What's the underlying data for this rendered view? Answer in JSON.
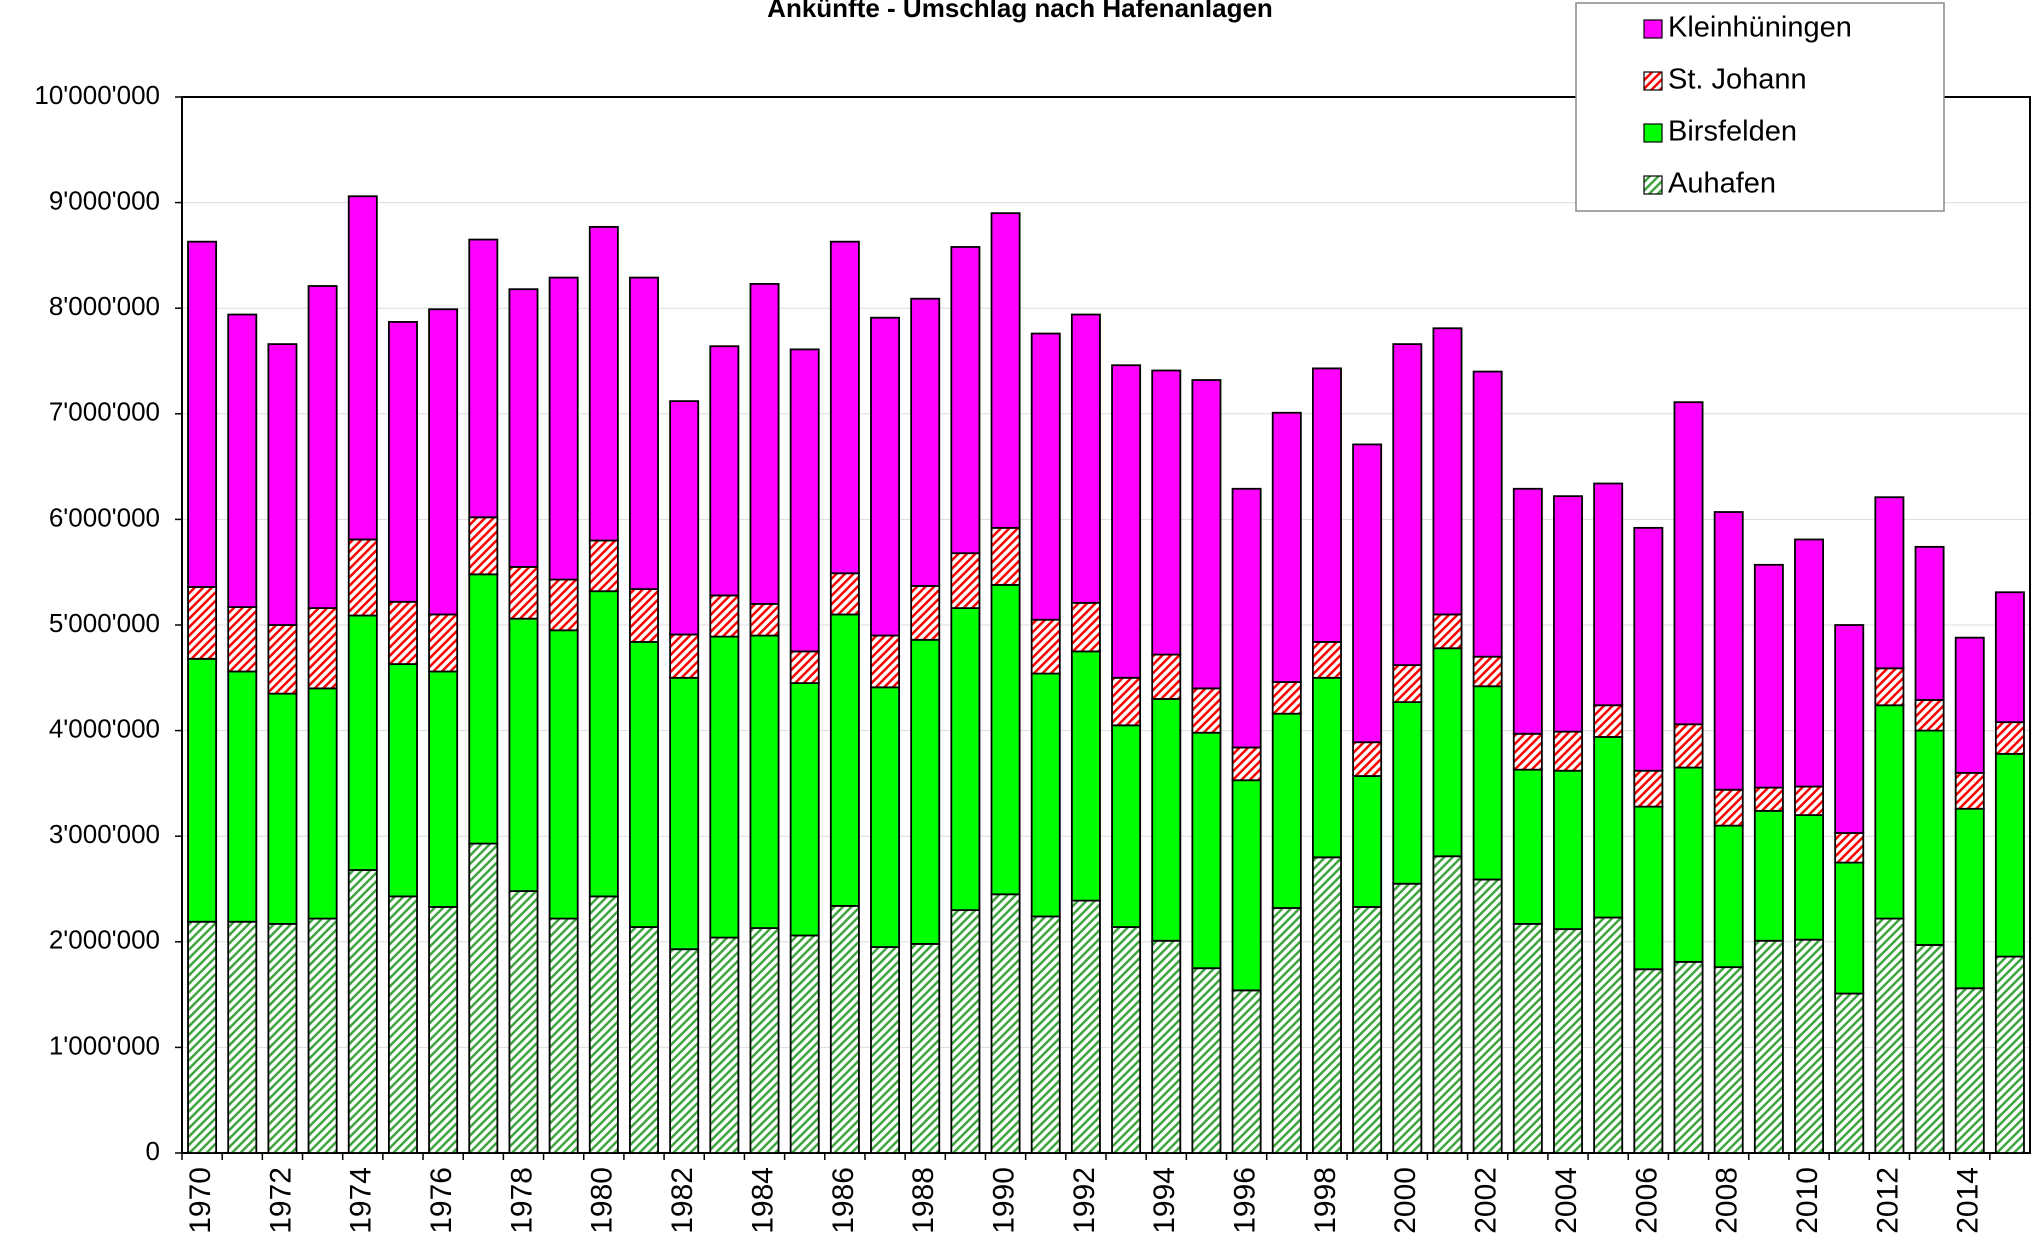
{
  "chart_data": {
    "type": "stacked_bar",
    "title": "Ankünfte - Umschlag nach Hafenanlagen",
    "categories": [
      "1970",
      null,
      "1972",
      null,
      "1974",
      null,
      "1976",
      null,
      "1978",
      null,
      "1980",
      null,
      "1982",
      null,
      "1984",
      null,
      "1986",
      null,
      "1988",
      null,
      "1990",
      null,
      "1992",
      null,
      "1994",
      null,
      "1996",
      null,
      "1998",
      null,
      "2000",
      null,
      "2002",
      null,
      "2004",
      null,
      "2006",
      null,
      "2008",
      null,
      "2010",
      null,
      "2012",
      null,
      "2014",
      null
    ],
    "series": [
      {
        "name": "Auhafen",
        "color": "#3fa53f",
        "hatched": true,
        "values": [
          2190000,
          2190000,
          2170000,
          2220000,
          2680000,
          2430000,
          2330000,
          2930000,
          2480000,
          2220000,
          2430000,
          2140000,
          1930000,
          2040000,
          2130000,
          2060000,
          2340000,
          1950000,
          1980000,
          2300000,
          2450000,
          2240000,
          2390000,
          2140000,
          2010000,
          1750000,
          1540000,
          2320000,
          2800000,
          2330000,
          2550000,
          2810000,
          2590000,
          2170000,
          2120000,
          2230000,
          1740000,
          1810000,
          1760000,
          2010000,
          2020000,
          1510000,
          2220000,
          1970000,
          1560000,
          1860000
        ]
      },
      {
        "name": "Birsfelden",
        "color": "#00ff00",
        "hatched": false,
        "values": [
          2490000,
          2370000,
          2180000,
          2180000,
          2410000,
          2200000,
          2230000,
          2550000,
          2580000,
          2730000,
          2890000,
          2700000,
          2570000,
          2850000,
          2770000,
          2390000,
          2760000,
          2460000,
          2880000,
          2860000,
          2930000,
          2300000,
          2360000,
          1910000,
          2290000,
          2230000,
          1990000,
          1840000,
          1700000,
          1240000,
          1720000,
          1970000,
          1830000,
          1460000,
          1500000,
          1710000,
          1540000,
          1840000,
          1340000,
          1230000,
          1180000,
          1240000,
          2020000,
          2030000,
          1700000,
          1920000
        ]
      },
      {
        "name": "St. Johann",
        "color": "#ff0000",
        "hatched": true,
        "values": [
          680000,
          610000,
          650000,
          760000,
          720000,
          590000,
          540000,
          540000,
          490000,
          480000,
          480000,
          500000,
          410000,
          390000,
          300000,
          300000,
          390000,
          490000,
          510000,
          520000,
          540000,
          510000,
          460000,
          450000,
          420000,
          420000,
          310000,
          300000,
          340000,
          320000,
          350000,
          320000,
          280000,
          340000,
          370000,
          300000,
          340000,
          410000,
          340000,
          220000,
          270000,
          280000,
          350000,
          290000,
          340000,
          300000
        ]
      },
      {
        "name": "Kleinhüningen",
        "color": "#ff00ff",
        "hatched": false,
        "values": [
          3270000,
          2770000,
          2660000,
          3050000,
          3250000,
          2650000,
          2890000,
          2630000,
          2630000,
          2860000,
          2970000,
          2950000,
          2210000,
          2360000,
          3030000,
          2860000,
          3140000,
          3010000,
          2720000,
          2900000,
          2980000,
          2710000,
          2730000,
          2960000,
          2690000,
          2920000,
          2450000,
          2550000,
          2590000,
          2820000,
          3040000,
          2710000,
          2700000,
          2320000,
          2230000,
          2100000,
          2300000,
          3050000,
          2630000,
          2110000,
          2340000,
          1970000,
          1620000,
          1450000,
          1280000,
          1230000
        ]
      }
    ],
    "ylim": [
      0,
      10000000
    ],
    "yticks": [
      0,
      {
        "value": 1000000,
        "label": "1'000'000"
      },
      {
        "value": 2000000,
        "label": "2'000'000"
      },
      {
        "value": 3000000,
        "label": "3'000'000"
      },
      {
        "value": 4000000,
        "label": "4'000'000"
      },
      {
        "value": 5000000,
        "label": "5'000'000"
      },
      {
        "value": 6000000,
        "label": "6'000'000"
      },
      {
        "value": 7000000,
        "label": "7'000'000"
      },
      {
        "value": 8000000,
        "label": "8'000'000"
      },
      {
        "value": 9000000,
        "label": "9'000'000"
      },
      {
        "value": 10000000,
        "label": "10'000'000"
      }
    ],
    "grid": true,
    "legend": "top-right"
  }
}
